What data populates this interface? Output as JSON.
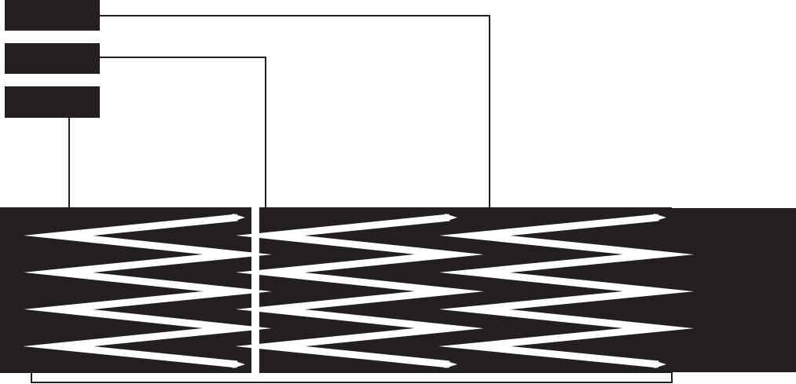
{
  "diagram": {
    "colors": {
      "background": "#ffffff",
      "dark_fill": "#231f20",
      "line": "#231f20",
      "serpentine": "#ffffff"
    },
    "labels": [],
    "boxes": [
      {
        "id": "box-top",
        "label": ""
      },
      {
        "id": "box-middle",
        "label": ""
      },
      {
        "id": "box-bottom",
        "label": ""
      }
    ],
    "segments": [
      {
        "id": "segment-left"
      },
      {
        "id": "segment-center"
      },
      {
        "id": "segment-right"
      }
    ],
    "connections": [
      {
        "from": "box-top",
        "to": "segment-right"
      },
      {
        "from": "box-middle",
        "to": "segment-center"
      },
      {
        "from": "box-bottom",
        "to": "segment-left"
      }
    ],
    "has_bottom_bracket": true
  }
}
